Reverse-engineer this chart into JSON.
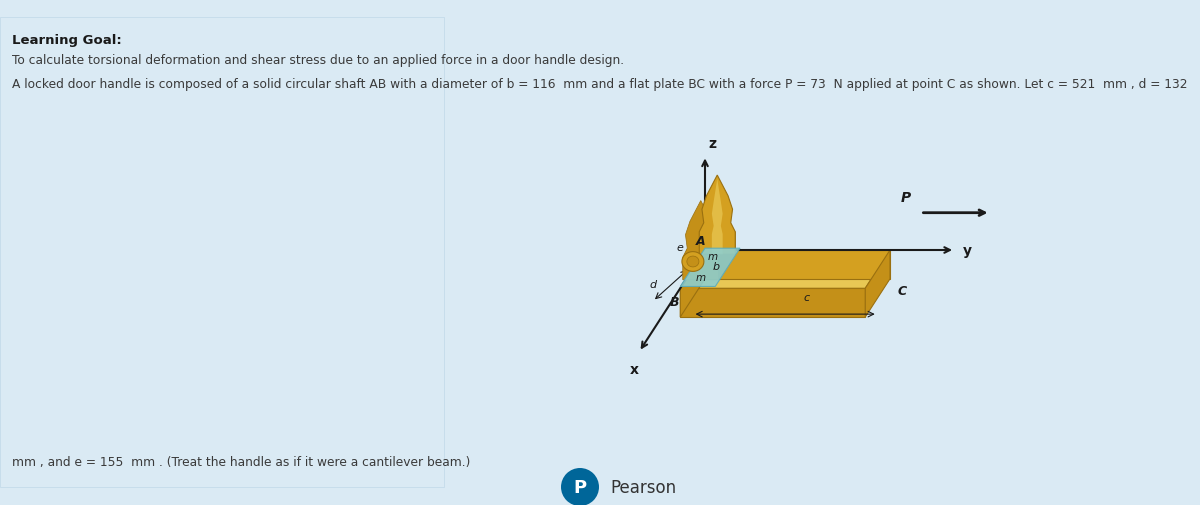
{
  "bg_color": "#daeaf4",
  "text_color": "#3a3a3a",
  "gold": "#D4A020",
  "gold_light": "#E8C855",
  "gold_mid": "#C49018",
  "gold_dark": "#9A7010",
  "teal": "#8ECECE",
  "teal_dark": "#5AABBB",
  "dark": "#1a1a1a",
  "title": "Learning Goal:",
  "subtitle": "To calculate torsional deformation and shear stress due to an applied force in a door handle design.",
  "prob1": "A locked door handle is composed of a solid circular shaft AB with a diameter of b = 116  mm and a flat plate BC with a force P = 73  N applied at point C as shown. Let c = 521  mm , d = 132",
  "prob2": "mm , and e = 155  mm . (Treat the handle as if it were a cantilever beam.)",
  "pearson": "Pearson",
  "pearson_color": "#006699"
}
